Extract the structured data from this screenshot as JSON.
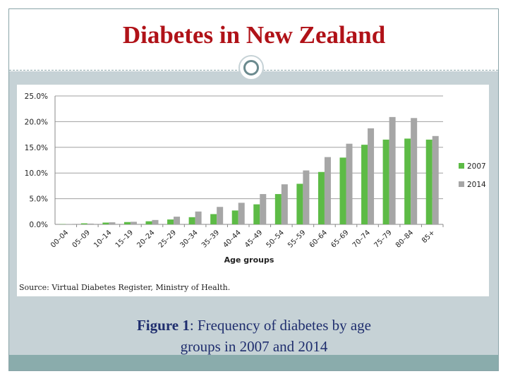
{
  "slide": {
    "title": "Diabetes in New Zealand",
    "caption_bold": "Figure 1",
    "caption_rest": ": Frequency of diabetes by age",
    "caption_line2": "groups in 2007 and 2014"
  },
  "chart_data": {
    "type": "bar",
    "xlabel": "Age groups",
    "ylabel": "",
    "source": "Source: Virtual Diabetes Register, Ministry of Health.",
    "categories": [
      "00–04",
      "05–09",
      "10–14",
      "15–19",
      "20–24",
      "25–29",
      "30–34",
      "35–39",
      "40–44",
      "45–49",
      "50–54",
      "55–59",
      "60–64",
      "65–69",
      "70–74",
      "75–79",
      "80–84",
      "85+"
    ],
    "series": [
      {
        "name": "2007",
        "color": "#5dbb46",
        "values": [
          0.05,
          0.2,
          0.35,
          0.45,
          0.6,
          0.95,
          1.4,
          2.0,
          2.7,
          3.9,
          5.9,
          7.9,
          10.2,
          13.0,
          15.5,
          16.5,
          16.7,
          16.5
        ]
      },
      {
        "name": "2014",
        "color": "#a6a6a6",
        "values": [
          0.05,
          0.15,
          0.4,
          0.5,
          0.85,
          1.5,
          2.5,
          3.4,
          4.2,
          5.9,
          7.8,
          10.5,
          13.1,
          15.7,
          18.7,
          20.9,
          20.7,
          17.2
        ]
      }
    ],
    "yticks": [
      "0.0%",
      "5.0%",
      "10.0%",
      "15.0%",
      "20.0%",
      "25.0%"
    ],
    "ylim": [
      0,
      25
    ],
    "grid": true,
    "legend": "right"
  }
}
